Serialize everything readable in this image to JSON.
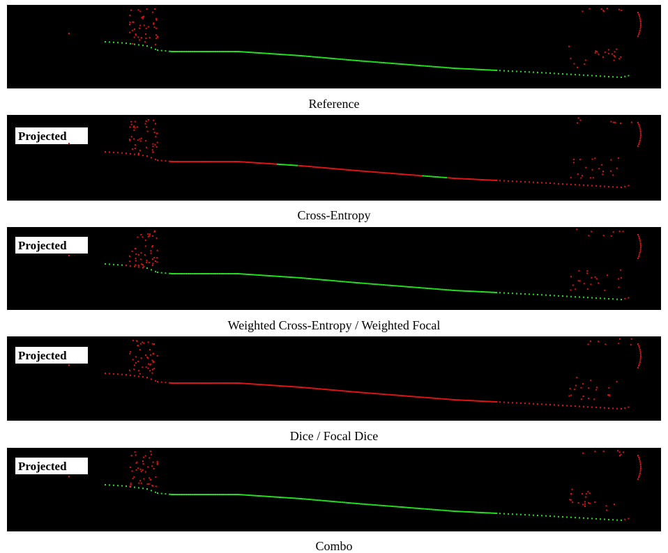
{
  "panels": [
    {
      "caption": "Reference"
    },
    {
      "label": "Projected",
      "caption": "Cross-Entropy"
    },
    {
      "label": "Projected",
      "caption": "Weighted Cross-Entropy / Weighted Focal"
    },
    {
      "label": "Projected",
      "caption": "Dice / Focal Dice"
    },
    {
      "label": "Projected",
      "caption": "Combo"
    }
  ]
}
